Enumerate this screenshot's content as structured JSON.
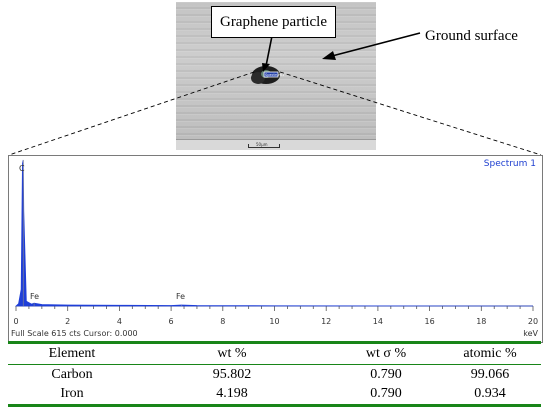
{
  "annotations": {
    "particle_label": "Graphene particle",
    "surface_label": "Ground surface",
    "scale_bar": "50μm",
    "spot_label": "Spectrum1"
  },
  "spectrum": {
    "title": "Spectrum 1",
    "footer": "Full Scale 615 cts Cursor: 0.000",
    "unit": "keV",
    "peaks": {
      "carbon": "C",
      "iron_l": "Fe",
      "iron_k": "Fe"
    }
  },
  "chart_data": {
    "type": "line",
    "title": "Spectrum 1",
    "xlabel": "keV",
    "ylabel": "",
    "xlim": [
      0,
      20
    ],
    "ylim": [
      0,
      615
    ],
    "x_ticks": [
      "0",
      "2",
      "4",
      "6",
      "8",
      "10",
      "12",
      "14",
      "16",
      "18",
      "20"
    ],
    "x": [
      0.0,
      0.1,
      0.2,
      0.25,
      0.28,
      0.3,
      0.4,
      0.6,
      0.7,
      1.0,
      2.0,
      4.0,
      6.0,
      6.4,
      7.0,
      10.0,
      20.0
    ],
    "values": [
      0,
      10,
      70,
      600,
      615,
      400,
      20,
      8,
      12,
      6,
      4,
      3,
      2,
      4,
      2,
      1,
      0
    ],
    "annotations": [
      "C",
      "Fe",
      "Fe"
    ],
    "color": "#1f3fd8"
  },
  "table": {
    "headers": [
      "Element",
      "wt %",
      "wt σ %",
      "atomic %"
    ],
    "rows": [
      [
        "Carbon",
        "95.802",
        "0.790",
        "99.066"
      ],
      [
        "Iron",
        "4.198",
        "0.790",
        "0.934"
      ]
    ],
    "rule_color": "#188518"
  }
}
